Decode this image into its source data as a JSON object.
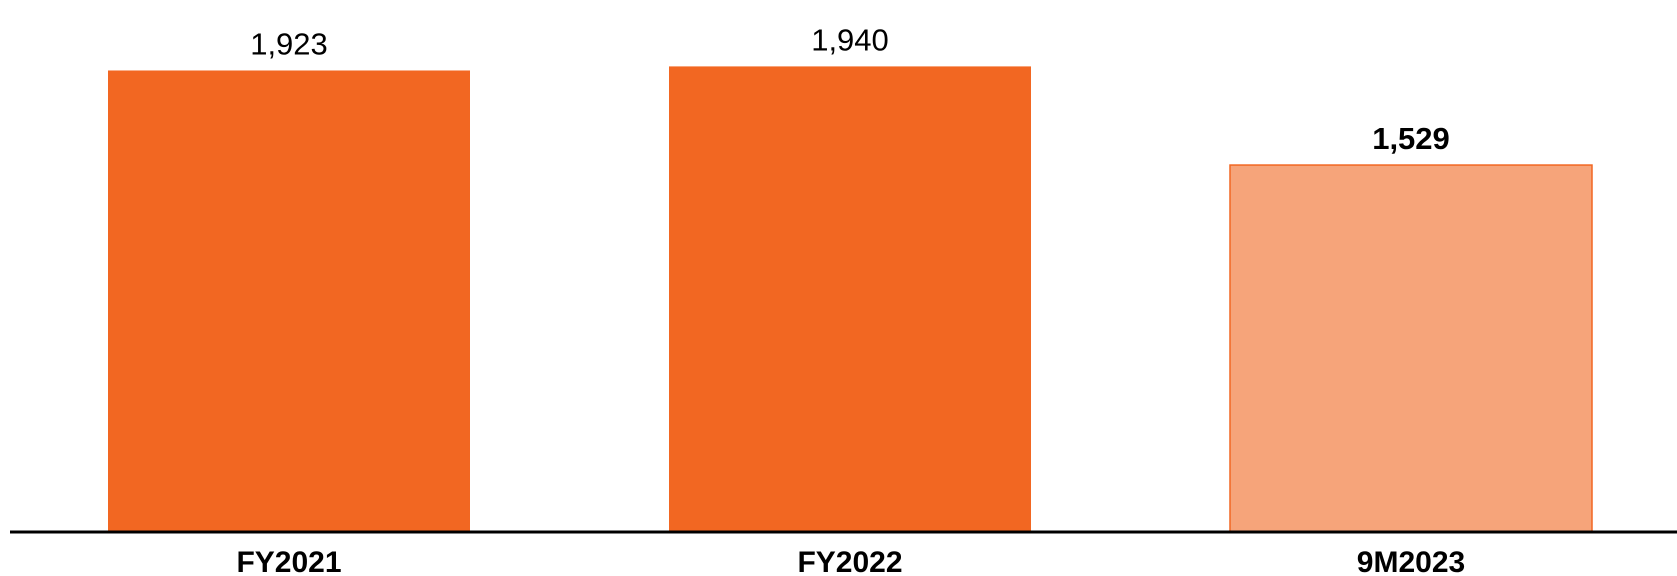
{
  "chart_data": {
    "type": "bar",
    "categories": [
      "FY2021",
      "FY2022",
      "9M2023"
    ],
    "values": [
      1923,
      1940,
      1529
    ],
    "value_labels": [
      "1,923",
      "1,940",
      "1,529"
    ],
    "bold_value_labels": [
      false,
      false,
      true
    ],
    "colors": [
      "#F26722",
      "#F26722",
      "#F6A47A"
    ],
    "highlight_border_color": "#F26722",
    "baseline_color": "#000000",
    "title": "",
    "xlabel": "",
    "ylabel": "",
    "ylim": [
      0,
      2050
    ],
    "grid": false,
    "legend": "none"
  }
}
